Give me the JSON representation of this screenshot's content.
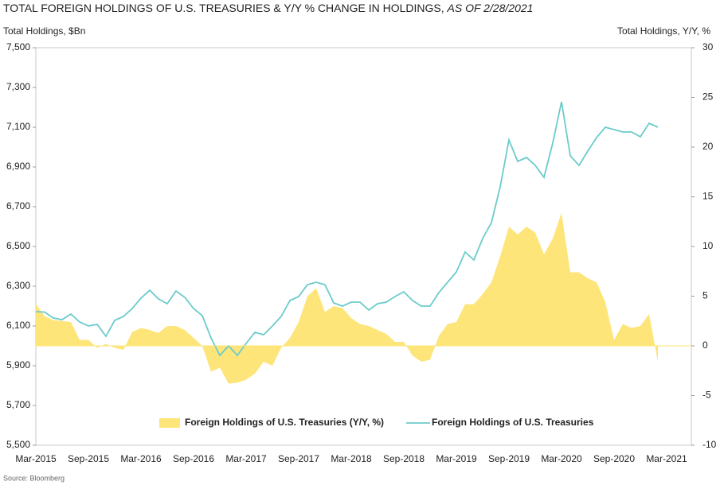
{
  "chart_data": {
    "type": "line",
    "title": "TOTAL FOREIGN HOLDINGS OF U.S. TREASURIES & Y/Y % CHANGE IN HOLDINGS,",
    "subtitle": "AS OF 2/28/2021",
    "y_axis_label": "Total Holdings, $Bn",
    "y2_axis_label": "Total Holdings, Y/Y, %",
    "source": "Source: Bloomberg",
    "categories": [
      "Mar-2015",
      null,
      null,
      null,
      null,
      null,
      "Sep-2015",
      null,
      null,
      null,
      null,
      null,
      "Mar-2016",
      null,
      null,
      null,
      null,
      null,
      "Sep-2016",
      null,
      null,
      null,
      null,
      null,
      "Mar-2017",
      null,
      null,
      null,
      null,
      null,
      "Sep-2017",
      null,
      null,
      null,
      null,
      null,
      "Mar-2018",
      null,
      null,
      null,
      null,
      null,
      "Sep-2018",
      null,
      null,
      null,
      null,
      null,
      "Mar-2019",
      null,
      null,
      null,
      null,
      null,
      "Sep-2019",
      null,
      null,
      null,
      null,
      null,
      "Mar-2020",
      null,
      null,
      null,
      null,
      null,
      "Sep-2020",
      null,
      null,
      null,
      null,
      null,
      "Mar-2021"
    ],
    "series": [
      {
        "name": "Foreign Holdings of U.S. Treasuries (Y/Y, %)",
        "type": "area",
        "axis": "y2",
        "color": "#fde57a",
        "values": [
          4.2,
          3.0,
          2.6,
          2.5,
          2.4,
          0.6,
          0.6,
          -0.2,
          0.2,
          -0.2,
          -0.4,
          1.4,
          1.8,
          1.6,
          1.3,
          2.0,
          2.0,
          1.6,
          0.8,
          0,
          -2.6,
          -2.2,
          -3.8,
          -3.7,
          -3.4,
          -2.8,
          -1.6,
          -2.0,
          -0.2,
          0.8,
          2.4,
          5.0,
          5.8,
          3.4,
          4.0,
          3.8,
          2.8,
          2.2,
          2.0,
          1.6,
          1.2,
          0.4,
          0.4,
          -1.0,
          -1.6,
          -1.4,
          1.0,
          2.2,
          2.4,
          4.2,
          4.2,
          5.2,
          6.4,
          9.0,
          12.0,
          11.2,
          12.0,
          11.4,
          9.2,
          10.8,
          13.4,
          7.4,
          7.4,
          6.8,
          6.4,
          4.4,
          0.6,
          2.2,
          1.8,
          2.0,
          3.2,
          -1.6,
          null
        ]
      },
      {
        "name": "Foreign Holdings of U.S. Treasuries",
        "type": "line",
        "axis": "y",
        "color": "#6ccbcb",
        "values": [
          6172,
          6170,
          6140,
          6132,
          6160,
          6120,
          6100,
          6108,
          6048,
          6128,
          6148,
          6188,
          6240,
          6280,
          6236,
          6212,
          6276,
          6244,
          6188,
          6152,
          6040,
          5952,
          6000,
          5952,
          6012,
          6068,
          6056,
          6100,
          6148,
          6228,
          6248,
          6308,
          6320,
          6308,
          6216,
          6200,
          6220,
          6220,
          6180,
          6212,
          6220,
          6248,
          6272,
          6228,
          6200,
          6200,
          6268,
          6320,
          6372,
          6472,
          6432,
          6540,
          6620,
          6800,
          7036,
          6928,
          6948,
          6908,
          6848,
          7020,
          7228,
          6956,
          6908,
          6980,
          7048,
          7100,
          7088,
          7076,
          7076,
          7052,
          7120,
          7100,
          null
        ]
      }
    ],
    "ylim": [
      5500,
      7500
    ],
    "yticks": [
      {
        "value": 5500,
        "label": "5,500"
      },
      {
        "value": 5700,
        "label": "5,700"
      },
      {
        "value": 5900,
        "label": "5,900"
      },
      {
        "value": 6100,
        "label": "6,100"
      },
      {
        "value": 6300,
        "label": "6,300"
      },
      {
        "value": 6500,
        "label": "6,500"
      },
      {
        "value": 6700,
        "label": "6,700"
      },
      {
        "value": 6900,
        "label": "6,900"
      },
      {
        "value": 7100,
        "label": "7,100"
      },
      {
        "value": 7300,
        "label": "7,300"
      },
      {
        "value": 7500,
        "label": "7,500"
      }
    ],
    "y2lim": [
      -10,
      30
    ],
    "y2ticks": [
      -10,
      -5,
      0,
      5,
      10,
      15,
      20,
      25,
      30
    ],
    "grid": false,
    "legend": "bottom"
  }
}
